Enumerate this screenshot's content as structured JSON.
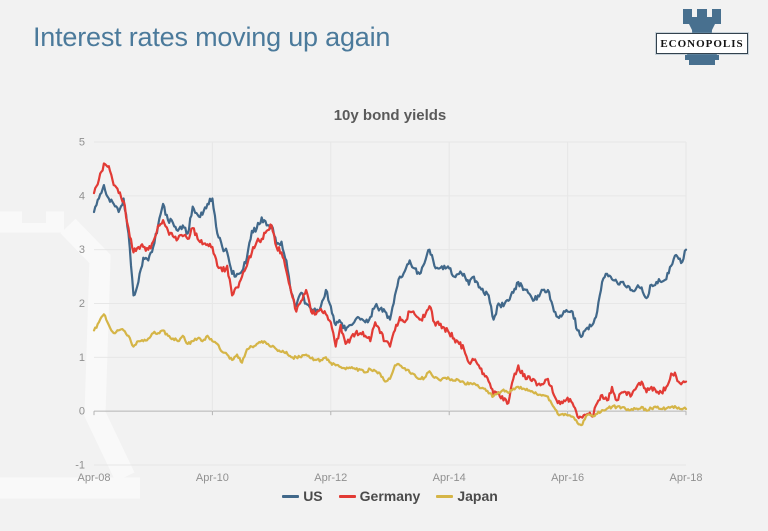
{
  "page": {
    "title": "Interest rates moving up again",
    "background_color": "#f2f2f2",
    "title_color": "#4b7a9b"
  },
  "logo": {
    "text": "ECONOPOLIS",
    "rook_color": "#48708f"
  },
  "chart_data": {
    "type": "line",
    "title": "10y bond yields",
    "xlabel": "",
    "ylabel": "",
    "ylim": [
      -1,
      5
    ],
    "y_ticks": [
      -1,
      0,
      1,
      2,
      3,
      4,
      5
    ],
    "grid": true,
    "legend_position": "bottom",
    "x_interval": "monthly",
    "x_range": [
      "Apr-08",
      "Apr-18"
    ],
    "x_tick_labels": [
      "Apr-08",
      "Apr-10",
      "Apr-12",
      "Apr-14",
      "Apr-16",
      "Apr-18"
    ],
    "axis_colors": {
      "gridline": "#e7e7e7",
      "zero_line": "#b4b4b4",
      "labels": "#909090"
    },
    "series": [
      {
        "name": "US",
        "color": "#41688a",
        "values": [
          3.7,
          3.95,
          4.2,
          3.95,
          3.85,
          3.7,
          3.95,
          3.3,
          2.15,
          2.4,
          2.85,
          2.8,
          3.05,
          3.45,
          3.85,
          3.55,
          3.5,
          3.35,
          3.45,
          3.3,
          3.8,
          3.65,
          3.65,
          3.85,
          3.95,
          3.3,
          3.05,
          2.95,
          2.55,
          2.55,
          2.6,
          2.85,
          3.35,
          3.4,
          3.6,
          3.45,
          3.45,
          3.1,
          3.15,
          2.8,
          2.2,
          1.95,
          2.2,
          2.0,
          1.9,
          1.85,
          1.95,
          2.25,
          1.95,
          1.6,
          1.65,
          1.5,
          1.6,
          1.7,
          1.7,
          1.65,
          1.75,
          1.95,
          1.9,
          1.85,
          1.7,
          2.15,
          2.5,
          2.6,
          2.8,
          2.65,
          2.55,
          2.75,
          3.0,
          2.7,
          2.65,
          2.7,
          2.65,
          2.5,
          2.55,
          2.55,
          2.35,
          2.5,
          2.3,
          2.2,
          2.15,
          1.7,
          2.0,
          1.95,
          2.05,
          2.2,
          2.4,
          2.25,
          2.2,
          2.05,
          2.15,
          2.25,
          2.25,
          1.95,
          1.75,
          1.8,
          1.85,
          1.85,
          1.5,
          1.4,
          1.55,
          1.6,
          1.85,
          2.4,
          2.55,
          2.45,
          2.4,
          2.4,
          2.3,
          2.25,
          2.3,
          2.3,
          2.1,
          2.35,
          2.4,
          2.4,
          2.45,
          2.7,
          2.9,
          2.75,
          3.0
        ]
      },
      {
        "name": "Germany",
        "color": "#e23b35",
        "values": [
          4.05,
          4.3,
          4.6,
          4.55,
          4.2,
          4.05,
          3.9,
          3.4,
          2.95,
          3.05,
          3.05,
          3.0,
          3.15,
          3.45,
          3.55,
          3.35,
          3.25,
          3.2,
          3.25,
          3.2,
          3.4,
          3.2,
          3.1,
          3.1,
          3.05,
          2.7,
          2.6,
          2.7,
          2.15,
          2.3,
          2.5,
          2.7,
          2.95,
          3.15,
          3.2,
          3.35,
          3.45,
          3.05,
          2.95,
          2.6,
          2.2,
          1.85,
          2.05,
          2.25,
          1.85,
          1.8,
          1.9,
          1.8,
          1.65,
          1.2,
          1.6,
          1.25,
          1.35,
          1.45,
          1.45,
          1.4,
          1.3,
          1.65,
          1.45,
          1.3,
          1.2,
          1.5,
          1.75,
          1.65,
          1.85,
          1.8,
          1.7,
          1.75,
          1.95,
          1.65,
          1.6,
          1.55,
          1.45,
          1.35,
          1.25,
          1.15,
          0.9,
          0.95,
          0.85,
          0.7,
          0.55,
          0.3,
          0.35,
          0.2,
          0.15,
          0.6,
          0.85,
          0.65,
          0.65,
          0.6,
          0.5,
          0.5,
          0.6,
          0.35,
          0.15,
          0.15,
          0.25,
          0.15,
          -0.1,
          -0.12,
          -0.05,
          -0.1,
          0.15,
          0.3,
          0.2,
          0.45,
          0.2,
          0.35,
          0.3,
          0.3,
          0.45,
          0.55,
          0.35,
          0.45,
          0.35,
          0.35,
          0.45,
          0.7,
          0.65,
          0.5,
          0.55
        ]
      },
      {
        "name": "Japan",
        "color": "#d5b547",
        "values": [
          1.5,
          1.65,
          1.8,
          1.6,
          1.45,
          1.5,
          1.5,
          1.4,
          1.2,
          1.3,
          1.3,
          1.35,
          1.45,
          1.45,
          1.5,
          1.4,
          1.35,
          1.3,
          1.4,
          1.25,
          1.3,
          1.35,
          1.3,
          1.4,
          1.3,
          1.25,
          1.1,
          1.05,
          0.95,
          1.05,
          0.9,
          1.15,
          1.2,
          1.25,
          1.3,
          1.25,
          1.2,
          1.15,
          1.1,
          1.1,
          1.0,
          1.0,
          1.0,
          1.05,
          0.98,
          0.95,
          0.95,
          1.0,
          0.9,
          0.85,
          0.82,
          0.78,
          0.8,
          0.78,
          0.77,
          0.72,
          0.78,
          0.75,
          0.7,
          0.55,
          0.6,
          0.85,
          0.85,
          0.8,
          0.72,
          0.68,
          0.6,
          0.62,
          0.74,
          0.62,
          0.58,
          0.62,
          0.6,
          0.57,
          0.57,
          0.53,
          0.5,
          0.52,
          0.45,
          0.42,
          0.33,
          0.28,
          0.35,
          0.4,
          0.34,
          0.42,
          0.45,
          0.42,
          0.38,
          0.35,
          0.3,
          0.3,
          0.27,
          0.1,
          -0.05,
          -0.05,
          -0.08,
          -0.1,
          -0.22,
          -0.25,
          -0.07,
          -0.08,
          -0.05,
          0.02,
          0.05,
          0.08,
          0.08,
          0.07,
          0.02,
          0.04,
          0.05,
          0.08,
          0.01,
          0.05,
          0.07,
          0.04,
          0.05,
          0.08,
          0.07,
          0.04,
          0.04
        ]
      }
    ]
  }
}
